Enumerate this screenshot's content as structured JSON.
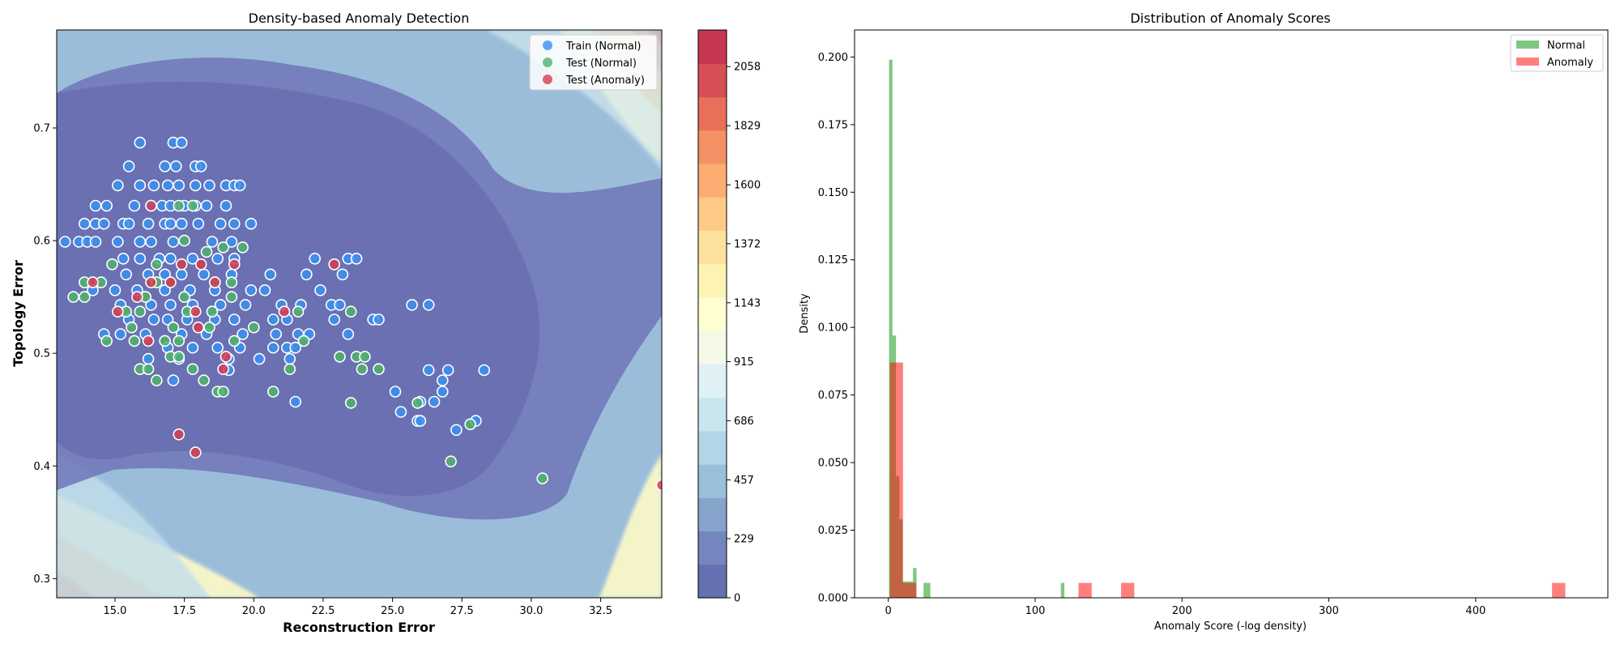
{
  "chart_data": [
    {
      "type": "scatter",
      "title": "Density-based Anomaly Detection",
      "xlabel": "Reconstruction Error",
      "ylabel": "Topology Error",
      "xlim": [
        12.9,
        34.7
      ],
      "ylim": [
        0.283,
        0.787
      ],
      "xticks": [
        "15.0",
        "17.5",
        "20.0",
        "22.5",
        "25.0",
        "27.5",
        "30.0",
        "32.5"
      ],
      "yticks": [
        "0.3",
        "0.4",
        "0.5",
        "0.6",
        "0.7"
      ],
      "legend_position": "top-right",
      "background": "filled density contours (RdYlBu_r colormap, alpha 0.6)",
      "colorbar": {
        "ticks": [
          "0",
          "229",
          "457",
          "686",
          "915",
          "1143",
          "1372",
          "1600",
          "1829",
          "2058"
        ],
        "range": [
          0,
          2200
        ]
      },
      "series": [
        {
          "name": "Train (Normal)",
          "color": "#3b8ff0",
          "points": [
            [
              13.2,
              0.599
            ],
            [
              13.7,
              0.599
            ],
            [
              14.0,
              0.599
            ],
            [
              14.3,
              0.599
            ],
            [
              15.1,
              0.599
            ],
            [
              15.9,
              0.599
            ],
            [
              16.3,
              0.599
            ],
            [
              17.1,
              0.599
            ],
            [
              18.5,
              0.599
            ],
            [
              19.2,
              0.599
            ],
            [
              13.9,
              0.615
            ],
            [
              14.3,
              0.615
            ],
            [
              14.6,
              0.615
            ],
            [
              15.3,
              0.615
            ],
            [
              15.5,
              0.615
            ],
            [
              16.2,
              0.615
            ],
            [
              16.8,
              0.615
            ],
            [
              17.0,
              0.615
            ],
            [
              17.4,
              0.615
            ],
            [
              18.0,
              0.615
            ],
            [
              18.8,
              0.615
            ],
            [
              19.3,
              0.615
            ],
            [
              19.9,
              0.615
            ],
            [
              14.3,
              0.631
            ],
            [
              14.7,
              0.631
            ],
            [
              15.7,
              0.631
            ],
            [
              16.3,
              0.631
            ],
            [
              16.7,
              0.631
            ],
            [
              17.0,
              0.631
            ],
            [
              17.5,
              0.631
            ],
            [
              17.9,
              0.631
            ],
            [
              18.3,
              0.631
            ],
            [
              19.0,
              0.631
            ],
            [
              15.1,
              0.649
            ],
            [
              15.9,
              0.649
            ],
            [
              16.4,
              0.649
            ],
            [
              16.9,
              0.649
            ],
            [
              17.3,
              0.649
            ],
            [
              17.9,
              0.649
            ],
            [
              18.4,
              0.649
            ],
            [
              19.0,
              0.649
            ],
            [
              19.3,
              0.649
            ],
            [
              19.5,
              0.649
            ],
            [
              15.5,
              0.666
            ],
            [
              16.8,
              0.666
            ],
            [
              17.2,
              0.666
            ],
            [
              17.9,
              0.666
            ],
            [
              18.1,
              0.666
            ],
            [
              15.9,
              0.687
            ],
            [
              17.1,
              0.687
            ],
            [
              17.4,
              0.687
            ],
            [
              15.3,
              0.584
            ],
            [
              15.9,
              0.584
            ],
            [
              16.6,
              0.584
            ],
            [
              17.0,
              0.584
            ],
            [
              17.8,
              0.584
            ],
            [
              18.7,
              0.584
            ],
            [
              19.3,
              0.584
            ],
            [
              22.2,
              0.584
            ],
            [
              23.4,
              0.584
            ],
            [
              23.7,
              0.584
            ],
            [
              15.4,
              0.57
            ],
            [
              16.2,
              0.57
            ],
            [
              16.8,
              0.57
            ],
            [
              17.4,
              0.57
            ],
            [
              18.2,
              0.57
            ],
            [
              19.2,
              0.57
            ],
            [
              20.6,
              0.57
            ],
            [
              21.9,
              0.57
            ],
            [
              23.2,
              0.57
            ],
            [
              14.2,
              0.556
            ],
            [
              15.0,
              0.556
            ],
            [
              15.8,
              0.556
            ],
            [
              16.8,
              0.556
            ],
            [
              17.7,
              0.556
            ],
            [
              18.6,
              0.556
            ],
            [
              19.9,
              0.556
            ],
            [
              20.4,
              0.556
            ],
            [
              22.4,
              0.556
            ],
            [
              15.2,
              0.543
            ],
            [
              16.3,
              0.543
            ],
            [
              17.0,
              0.543
            ],
            [
              17.8,
              0.543
            ],
            [
              18.8,
              0.543
            ],
            [
              19.7,
              0.543
            ],
            [
              21.0,
              0.543
            ],
            [
              21.7,
              0.543
            ],
            [
              22.8,
              0.543
            ],
            [
              23.1,
              0.543
            ],
            [
              25.7,
              0.543
            ],
            [
              26.3,
              0.543
            ],
            [
              15.5,
              0.53
            ],
            [
              16.4,
              0.53
            ],
            [
              16.9,
              0.53
            ],
            [
              17.6,
              0.53
            ],
            [
              18.6,
              0.53
            ],
            [
              19.3,
              0.53
            ],
            [
              20.7,
              0.53
            ],
            [
              21.2,
              0.53
            ],
            [
              22.9,
              0.53
            ],
            [
              24.3,
              0.53
            ],
            [
              24.5,
              0.53
            ],
            [
              14.6,
              0.517
            ],
            [
              15.2,
              0.517
            ],
            [
              16.1,
              0.517
            ],
            [
              17.4,
              0.517
            ],
            [
              18.3,
              0.517
            ],
            [
              19.6,
              0.517
            ],
            [
              20.8,
              0.517
            ],
            [
              21.6,
              0.517
            ],
            [
              22.0,
              0.517
            ],
            [
              23.4,
              0.517
            ],
            [
              16.9,
              0.505
            ],
            [
              17.8,
              0.505
            ],
            [
              18.7,
              0.505
            ],
            [
              19.5,
              0.505
            ],
            [
              20.7,
              0.505
            ],
            [
              21.2,
              0.505
            ],
            [
              21.5,
              0.505
            ],
            [
              16.2,
              0.495
            ],
            [
              17.3,
              0.495
            ],
            [
              19.1,
              0.495
            ],
            [
              20.2,
              0.495
            ],
            [
              21.3,
              0.495
            ],
            [
              19.1,
              0.485
            ],
            [
              26.3,
              0.485
            ],
            [
              27.0,
              0.485
            ],
            [
              28.3,
              0.485
            ],
            [
              26.8,
              0.476
            ],
            [
              25.1,
              0.466
            ],
            [
              26.8,
              0.466
            ],
            [
              17.1,
              0.476
            ],
            [
              21.5,
              0.457
            ],
            [
              26.0,
              0.457
            ],
            [
              26.5,
              0.457
            ],
            [
              25.3,
              0.448
            ],
            [
              25.9,
              0.44
            ],
            [
              26.0,
              0.44
            ],
            [
              27.3,
              0.432
            ],
            [
              28.0,
              0.44
            ]
          ]
        },
        {
          "name": "Test (Normal)",
          "color": "#4fb36b",
          "points": [
            [
              13.5,
              0.55
            ],
            [
              13.9,
              0.55
            ],
            [
              13.9,
              0.563
            ],
            [
              14.5,
              0.563
            ],
            [
              14.7,
              0.511
            ],
            [
              14.9,
              0.579
            ],
            [
              15.4,
              0.537
            ],
            [
              15.6,
              0.523
            ],
            [
              15.7,
              0.511
            ],
            [
              15.9,
              0.537
            ],
            [
              15.9,
              0.486
            ],
            [
              16.2,
              0.486
            ],
            [
              16.5,
              0.476
            ],
            [
              16.5,
              0.563
            ],
            [
              16.8,
              0.511
            ],
            [
              17.0,
              0.497
            ],
            [
              17.1,
              0.523
            ],
            [
              17.3,
              0.511
            ],
            [
              17.3,
              0.497
            ],
            [
              17.5,
              0.55
            ],
            [
              17.6,
              0.537
            ],
            [
              17.8,
              0.486
            ],
            [
              18.2,
              0.476
            ],
            [
              18.4,
              0.523
            ],
            [
              18.5,
              0.537
            ],
            [
              18.6,
              0.563
            ],
            [
              18.7,
              0.466
            ],
            [
              18.9,
              0.594
            ],
            [
              18.9,
              0.466
            ],
            [
              19.2,
              0.563
            ],
            [
              19.3,
              0.511
            ],
            [
              19.6,
              0.594
            ],
            [
              20.0,
              0.523
            ],
            [
              20.7,
              0.466
            ],
            [
              21.3,
              0.486
            ],
            [
              21.6,
              0.537
            ],
            [
              21.8,
              0.511
            ],
            [
              23.1,
              0.497
            ],
            [
              23.5,
              0.456
            ],
            [
              23.5,
              0.537
            ],
            [
              23.7,
              0.497
            ],
            [
              23.9,
              0.486
            ],
            [
              24.0,
              0.497
            ],
            [
              24.5,
              0.486
            ],
            [
              25.9,
              0.456
            ],
            [
              27.1,
              0.404
            ],
            [
              27.8,
              0.437
            ],
            [
              30.4,
              0.389
            ],
            [
              17.3,
              0.631
            ],
            [
              16.5,
              0.579
            ],
            [
              16.1,
              0.55
            ],
            [
              17.8,
              0.631
            ],
            [
              19.2,
              0.55
            ],
            [
              17.5,
              0.6
            ],
            [
              18.3,
              0.59
            ]
          ]
        },
        {
          "name": "Test (Anomaly)",
          "color": "#d43d51",
          "points": [
            [
              14.2,
              0.563
            ],
            [
              15.1,
              0.537
            ],
            [
              15.8,
              0.55
            ],
            [
              16.2,
              0.511
            ],
            [
              16.3,
              0.631
            ],
            [
              17.0,
              0.563
            ],
            [
              17.4,
              0.579
            ],
            [
              17.9,
              0.537
            ],
            [
              18.0,
              0.523
            ],
            [
              18.1,
              0.579
            ],
            [
              18.6,
              0.563
            ],
            [
              18.9,
              0.486
            ],
            [
              19.0,
              0.497
            ],
            [
              19.3,
              0.579
            ],
            [
              21.1,
              0.537
            ],
            [
              22.9,
              0.579
            ],
            [
              17.3,
              0.428
            ],
            [
              17.9,
              0.412
            ],
            [
              34.7,
              0.383
            ],
            [
              16.3,
              0.563
            ]
          ]
        }
      ]
    },
    {
      "type": "histogram",
      "title": "Distribution of Anomaly Scores",
      "xlabel": "Anomaly Score (-log density)",
      "ylabel": "Density",
      "xlim": [
        -23,
        490
      ],
      "ylim": [
        0,
        0.21
      ],
      "xticks": [
        0,
        100,
        200,
        300,
        400
      ],
      "yticks": [
        "0.000",
        "0.025",
        "0.050",
        "0.075",
        "0.100",
        "0.125",
        "0.150",
        "0.175",
        "0.200"
      ],
      "legend_position": "top-right",
      "series": [
        {
          "name": "Normal",
          "color": "#2ca02c",
          "alpha": 0.6,
          "bins": [
            [
              0.5,
              2.8,
              0.199
            ],
            [
              2.8,
              5.2,
              0.097
            ],
            [
              5.2,
              7.5,
              0.045
            ],
            [
              7.5,
              9.8,
              0.029
            ],
            [
              9.8,
              12.2,
              0.006
            ],
            [
              12.2,
              14.5,
              0.006
            ],
            [
              14.5,
              16.8,
              0.006
            ],
            [
              16.8,
              19.2,
              0.011
            ],
            [
              24.0,
              26.3,
              0.0055
            ],
            [
              26.3,
              28.6,
              0.0055
            ],
            [
              117.5,
              119.9,
              0.0055
            ]
          ]
        },
        {
          "name": "Anomaly",
          "color": "#ff0000",
          "alpha": 0.5,
          "bins": [
            [
              1.0,
              5.5,
              0.087
            ],
            [
              5.5,
              10.0,
              0.087
            ],
            [
              10.0,
              14.5,
              0.0055
            ],
            [
              14.5,
              19.0,
              0.0055
            ],
            [
              129.5,
              138.5,
              0.0055
            ],
            [
              158.5,
              167.5,
              0.0055
            ],
            [
              452.0,
              461.0,
              0.0055
            ]
          ]
        }
      ]
    }
  ]
}
